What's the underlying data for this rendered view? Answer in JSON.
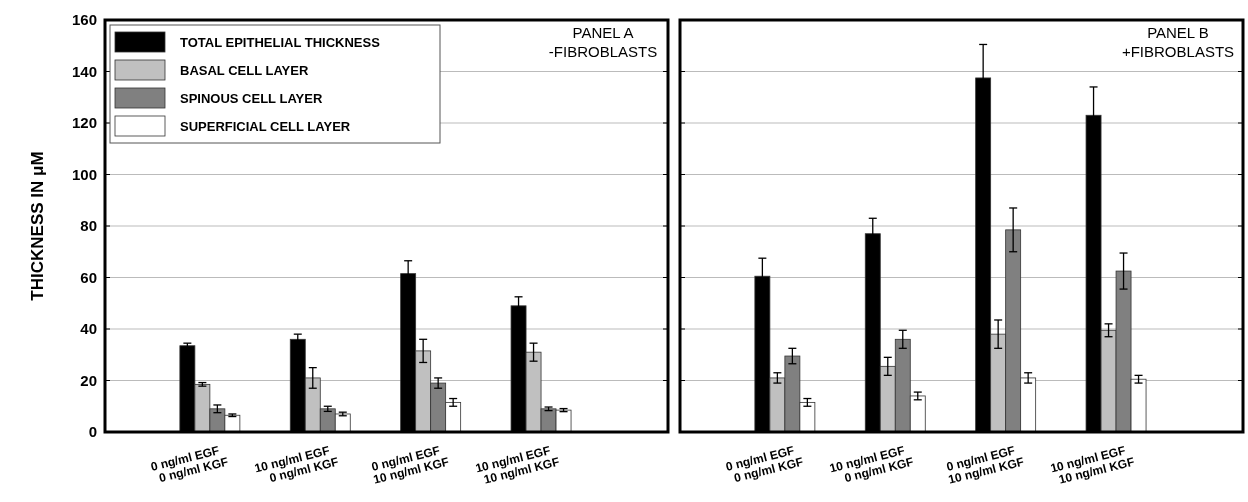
{
  "chart_data": [
    {
      "type": "bar",
      "title": "PANEL A",
      "subtitle": "-FIBROBLASTS",
      "ylabel": "THICKNESS IN μM",
      "categories": [
        "0 ng/ml EGF\n0 ng/ml KGF",
        "10 ng/ml EGF\n0 ng/ml KGF",
        "0 ng/ml EGF\n10 ng/ml KGF",
        "10 ng/ml EGF\n10 ng/ml KGF"
      ],
      "series": [
        {
          "name": "TOTAL EPITHELIAL THICKNESS",
          "color": "#000000",
          "values": [
            33.5,
            36,
            61.5,
            49
          ],
          "errors": [
            1,
            2,
            5,
            3.5
          ]
        },
        {
          "name": "BASAL CELL LAYER",
          "color": "#c0c0c0",
          "values": [
            18.5,
            21,
            31.5,
            31
          ],
          "errors": [
            0.7,
            4,
            4.5,
            3.5
          ]
        },
        {
          "name": "SPINOUS CELL LAYER",
          "color": "#808080",
          "values": [
            9,
            9,
            19,
            9
          ],
          "errors": [
            1.5,
            1,
            2,
            0.7
          ]
        },
        {
          "name": "SUPERFICIAL CELL LAYER",
          "color": "#ffffff",
          "values": [
            6.5,
            7,
            11.5,
            8.5
          ],
          "errors": [
            0.5,
            0.7,
            1.5,
            0.6
          ]
        }
      ],
      "ylim": [
        0,
        160
      ],
      "yticks": [
        0,
        20,
        40,
        60,
        80,
        100,
        120,
        140,
        160
      ],
      "grid": "y",
      "legend": "top left"
    },
    {
      "type": "bar",
      "title": "PANEL B",
      "subtitle": "+FIBROBLASTS",
      "categories": [
        "0 ng/ml EGF\n0 ng/ml KGF",
        "10 ng/ml EGF\n0 ng/ml KGF",
        "0 ng/ml EGF\n10 ng/ml KGF",
        "10 ng/ml EGF\n10 ng/ml KGF"
      ],
      "series": [
        {
          "color": "#000000",
          "values": [
            60.5,
            77,
            137.5,
            123
          ],
          "errors": [
            7,
            6,
            13,
            11
          ]
        },
        {
          "color": "#c0c0c0",
          "values": [
            21,
            25.5,
            38,
            39.5
          ],
          "errors": [
            2,
            3.5,
            5.5,
            2.5
          ]
        },
        {
          "color": "#808080",
          "values": [
            29.5,
            36,
            78.5,
            62.5
          ],
          "errors": [
            3,
            3.5,
            8.5,
            7
          ]
        },
        {
          "color": "#ffffff",
          "values": [
            11.5,
            14,
            21,
            20.5
          ],
          "errors": [
            1.5,
            1.5,
            2,
            1.5
          ]
        }
      ],
      "ylim": [
        0,
        160
      ],
      "yticks": [
        0,
        20,
        40,
        60,
        80,
        100,
        120,
        140,
        160
      ],
      "grid": "y",
      "tick_labels": "x"
    }
  ]
}
